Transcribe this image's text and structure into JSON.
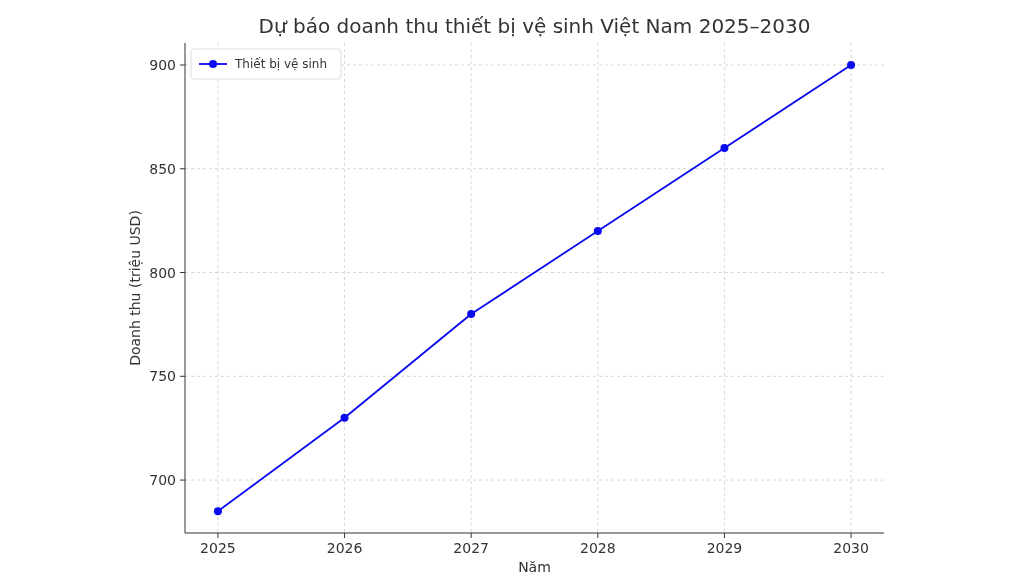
{
  "chart_data": {
    "type": "line",
    "title": "Dự báo doanh thu thiết bị vệ sinh Việt Nam 2025–2030",
    "xlabel": "Năm",
    "ylabel": "Doanh thu (triệu USD)",
    "x": [
      2025,
      2026,
      2027,
      2028,
      2029,
      2030
    ],
    "series": [
      {
        "name": "Thiết bị vệ sinh",
        "color": "#0a0af0",
        "values": [
          685,
          730,
          780,
          820,
          860,
          900
        ]
      }
    ],
    "xlim": [
      2024.74,
      2030.26
    ],
    "xticks": [
      2025,
      2026,
      2027,
      2028,
      2029,
      2030
    ],
    "ylim": [
      674.5,
      910.6
    ],
    "yticks": [
      700,
      750,
      800,
      850,
      900
    ],
    "grid": true,
    "legend": "top left",
    "marker": "circle",
    "line_style": "solid"
  }
}
